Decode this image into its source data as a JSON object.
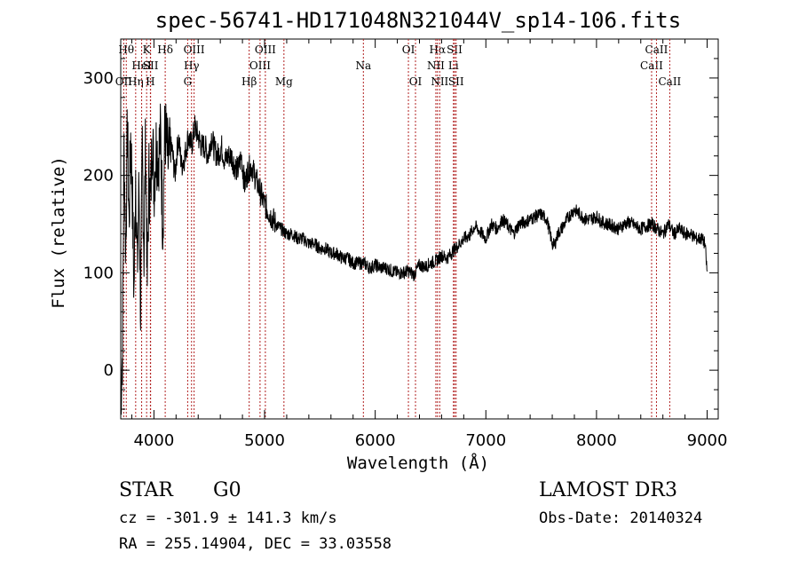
{
  "chart_data": {
    "type": "line",
    "title": "spec-56741-HD171048N321044V_sp14-106.fits",
    "xlabel": "Wavelength (Å)",
    "ylabel": "Flux (relative)",
    "xlim": [
      3700,
      9100
    ],
    "ylim": [
      -50,
      340
    ],
    "x_ticks": [
      4000,
      5000,
      6000,
      7000,
      8000,
      9000
    ],
    "y_ticks": [
      0,
      100,
      200,
      300
    ],
    "series": [
      {
        "name": "spectrum",
        "x": [
          3700,
          3715,
          3730,
          3745,
          3760,
          3775,
          3790,
          3805,
          3820,
          3835,
          3850,
          3865,
          3880,
          3895,
          3910,
          3925,
          3940,
          3955,
          3970,
          3985,
          4000,
          4020,
          4040,
          4060,
          4080,
          4100,
          4130,
          4160,
          4190,
          4220,
          4250,
          4280,
          4310,
          4340,
          4370,
          4400,
          4430,
          4460,
          4490,
          4520,
          4550,
          4580,
          4610,
          4640,
          4670,
          4700,
          4730,
          4760,
          4790,
          4820,
          4850,
          4880,
          4910,
          4940,
          4970,
          5000,
          5050,
          5100,
          5150,
          5200,
          5250,
          5300,
          5350,
          5400,
          5450,
          5500,
          5550,
          5600,
          5650,
          5700,
          5750,
          5800,
          5850,
          5900,
          5950,
          6000,
          6050,
          6100,
          6150,
          6200,
          6250,
          6300,
          6350,
          6400,
          6450,
          6500,
          6550,
          6600,
          6650,
          6700,
          6750,
          6800,
          6850,
          6900,
          6950,
          7000,
          7050,
          7100,
          7150,
          7200,
          7250,
          7300,
          7350,
          7400,
          7450,
          7500,
          7550,
          7600,
          7620,
          7650,
          7700,
          7750,
          7800,
          7850,
          7900,
          7950,
          8000,
          8050,
          8100,
          8150,
          8200,
          8250,
          8300,
          8350,
          8400,
          8450,
          8500,
          8550,
          8600,
          8650,
          8700,
          8750,
          8800,
          8850,
          8900,
          8950,
          8980,
          9000
        ],
        "y": [
          -30,
          20,
          230,
          120,
          250,
          150,
          240,
          180,
          80,
          210,
          100,
          190,
          60,
          230,
          120,
          240,
          90,
          200,
          170,
          250,
          190,
          230,
          220,
          240,
          150,
          250,
          210,
          230,
          200,
          240,
          210,
          220,
          240,
          230,
          250,
          240,
          230,
          230,
          220,
          240,
          225,
          220,
          230,
          215,
          220,
          220,
          210,
          205,
          220,
          190,
          205,
          210,
          200,
          190,
          180,
          170,
          160,
          150,
          145,
          140,
          140,
          135,
          135,
          130,
          130,
          125,
          125,
          120,
          120,
          115,
          115,
          110,
          110,
          110,
          105,
          108,
          105,
          105,
          102,
          100,
          100,
          102,
          98,
          108,
          106,
          110,
          112,
          118,
          115,
          122,
          128,
          135,
          138,
          148,
          142,
          135,
          150,
          145,
          155,
          148,
          140,
          150,
          152,
          155,
          158,
          160,
          155,
          130,
          128,
          140,
          148,
          158,
          165,
          160,
          155,
          155,
          158,
          152,
          150,
          148,
          145,
          150,
          152,
          148,
          145,
          148,
          150,
          145,
          140,
          150,
          140,
          145,
          140,
          140,
          135,
          135,
          130,
          100
        ]
      }
    ],
    "lines": [
      {
        "label": "Hθ",
        "x": 3750,
        "row": 1
      },
      {
        "label": "OII",
        "x": 3727,
        "row": 3
      },
      {
        "label": "Hη",
        "x": 3835,
        "row": 3
      },
      {
        "label": "HeI",
        "x": 3889,
        "row": 2
      },
      {
        "label": "K",
        "x": 3934,
        "row": 1
      },
      {
        "label": "SII",
        "x": 3970,
        "row": 2
      },
      {
        "label": "H",
        "x": 3968,
        "row": 3
      },
      {
        "label": "Hδ",
        "x": 4102,
        "row": 1
      },
      {
        "label": "OIII",
        "x": 4363,
        "row": 1
      },
      {
        "label": "Hγ",
        "x": 4340,
        "row": 2
      },
      {
        "label": "G",
        "x": 4305,
        "row": 3
      },
      {
        "label": "Hβ",
        "x": 4861,
        "row": 3
      },
      {
        "label": "OIII",
        "x": 5007,
        "row": 1
      },
      {
        "label": "OIII",
        "x": 4959,
        "row": 2
      },
      {
        "label": "Mg",
        "x": 5175,
        "row": 3
      },
      {
        "label": "Na",
        "x": 5893,
        "row": 2
      },
      {
        "label": "OI",
        "x": 6300,
        "row": 1
      },
      {
        "label": "OI",
        "x": 6364,
        "row": 3
      },
      {
        "label": "Hα",
        "x": 6563,
        "row": 1
      },
      {
        "label": "NII",
        "x": 6548,
        "row": 2
      },
      {
        "label": "NII",
        "x": 6583,
        "row": 3
      },
      {
        "label": "SII",
        "x": 6717,
        "row": 1
      },
      {
        "label": "Li",
        "x": 6707,
        "row": 2
      },
      {
        "label": "SII",
        "x": 6731,
        "row": 3
      },
      {
        "label": "CaII",
        "x": 8498,
        "row": 2
      },
      {
        "label": "CaII",
        "x": 8542,
        "row": 1
      },
      {
        "label": "CaII",
        "x": 8662,
        "row": 3
      }
    ]
  },
  "info": {
    "object_class": "STAR",
    "subclass": "G0",
    "survey": "LAMOST DR3",
    "redshift": "cz = -301.9 ± 141.3 km/s",
    "obs_date": "Obs-Date: 20140324",
    "coords": "RA = 255.14904, DEC =  33.03558"
  }
}
